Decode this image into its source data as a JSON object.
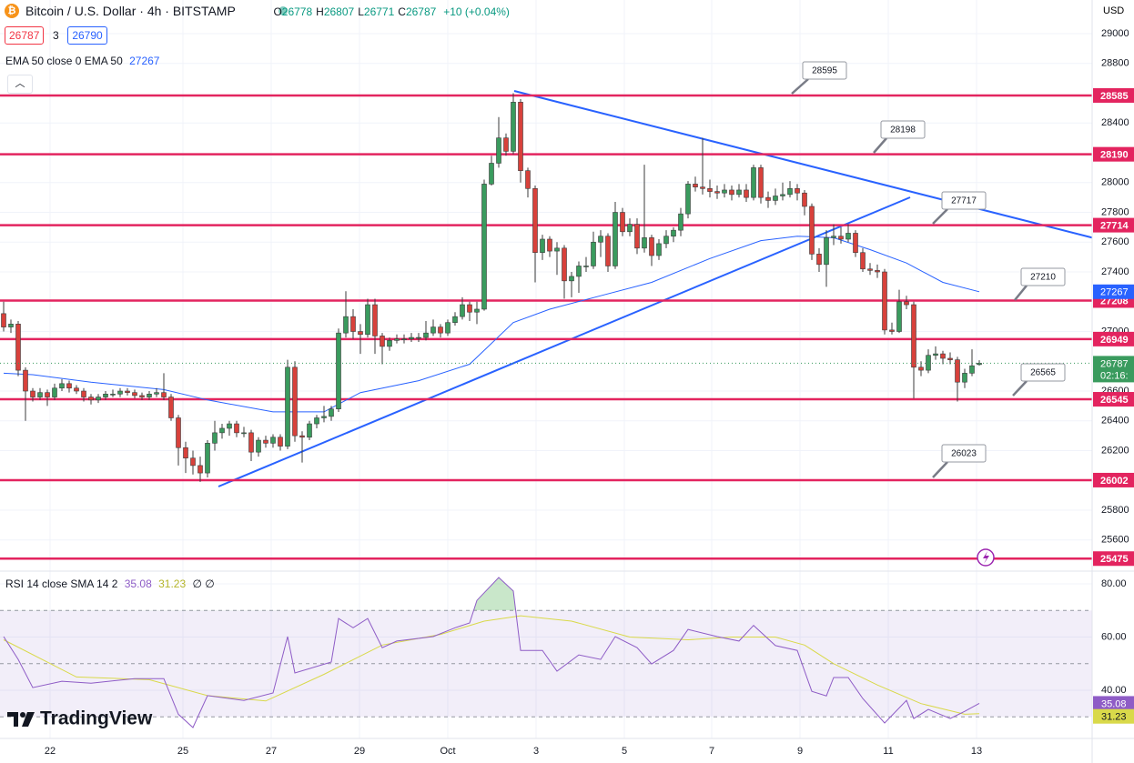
{
  "chart_data": {
    "type": "candlestick",
    "title": "Bitcoin / U.S. Dollar · 4h · BITSTAMP",
    "ohlc_legend": [
      {
        "label": "O",
        "value": 26778
      },
      {
        "label": "H",
        "value": 26807
      },
      {
        "label": "L",
        "value": 26771
      },
      {
        "label": "C",
        "value": 26787
      }
    ],
    "change": "+10 (+0.04%)",
    "bid": 26787,
    "spread": 3,
    "ask": 26790,
    "currency": "USD",
    "ylim": [
      25391,
      29226
    ],
    "yticks": [
      29000,
      28800,
      28400,
      28000,
      27800,
      27600,
      27400,
      27000,
      26600,
      26400,
      26200,
      25800,
      25600
    ],
    "xlim": [
      -0.5,
      149.5
    ],
    "xticks": [
      {
        "value": 6.375,
        "label": "22"
      },
      {
        "value": 24.625,
        "label": "25"
      },
      {
        "value": 36.75,
        "label": "27"
      },
      {
        "value": 48.875,
        "label": "29"
      },
      {
        "value": 61,
        "label": "Oct"
      },
      {
        "value": 73.125,
        "label": "3"
      },
      {
        "value": 85.25,
        "label": "5"
      },
      {
        "value": 97.25,
        "label": "7"
      },
      {
        "value": 109.375,
        "label": "9"
      },
      {
        "value": 121.5,
        "label": "11"
      },
      {
        "value": 133.625,
        "label": "13"
      }
    ],
    "grid": true,
    "up_color": "#3a9b5e",
    "down_color": "#d8413b",
    "wick_color": "#3b3b3b",
    "candles": [
      [
        27120,
        27200,
        27000,
        27030
      ],
      [
        27030,
        27080,
        26990,
        27050
      ],
      [
        27050,
        27070,
        26700,
        26740
      ],
      [
        26740,
        26760,
        26400,
        26600
      ],
      [
        26600,
        26620,
        26530,
        26560
      ],
      [
        26560,
        26620,
        26540,
        26590
      ],
      [
        26590,
        26610,
        26500,
        26560
      ],
      [
        26560,
        26650,
        26540,
        26620
      ],
      [
        26620,
        26680,
        26600,
        26650
      ],
      [
        26650,
        26670,
        26590,
        26620
      ],
      [
        26620,
        26640,
        26580,
        26600
      ],
      [
        26600,
        26620,
        26530,
        26560
      ],
      [
        26560,
        26580,
        26510,
        26540
      ],
      [
        26540,
        26580,
        26520,
        26560
      ],
      [
        26560,
        26600,
        26540,
        26580
      ],
      [
        26580,
        26610,
        26560,
        26580
      ],
      [
        26580,
        26620,
        26560,
        26600
      ],
      [
        26600,
        26620,
        26570,
        26590
      ],
      [
        26590,
        26610,
        26550,
        26570
      ],
      [
        26570,
        26590,
        26540,
        26560
      ],
      [
        26560,
        26600,
        26540,
        26580
      ],
      [
        26580,
        26620,
        26560,
        26590
      ],
      [
        26590,
        26720,
        26540,
        26560
      ],
      [
        26560,
        26580,
        26400,
        26420
      ],
      [
        26420,
        26440,
        26100,
        26220
      ],
      [
        26220,
        26260,
        26050,
        26150
      ],
      [
        26150,
        26200,
        26040,
        26100
      ],
      [
        26100,
        26160,
        25990,
        26050
      ],
      [
        26050,
        26270,
        26020,
        26250
      ],
      [
        26250,
        26400,
        26200,
        26320
      ],
      [
        26320,
        26380,
        26280,
        26350
      ],
      [
        26350,
        26400,
        26300,
        26380
      ],
      [
        26380,
        26400,
        26290,
        26320
      ],
      [
        26320,
        26360,
        26290,
        26320
      ],
      [
        26320,
        26340,
        26130,
        26190
      ],
      [
        26190,
        26290,
        26160,
        26270
      ],
      [
        26270,
        26300,
        26220,
        26250
      ],
      [
        26250,
        26310,
        26220,
        26290
      ],
      [
        26290,
        26310,
        26200,
        26230
      ],
      [
        26230,
        26810,
        26210,
        26760
      ],
      [
        26760,
        26800,
        26260,
        26300
      ],
      [
        26300,
        26330,
        26120,
        26290
      ],
      [
        26290,
        26400,
        26270,
        26380
      ],
      [
        26380,
        26440,
        26350,
        26420
      ],
      [
        26420,
        26500,
        26390,
        26430
      ],
      [
        26430,
        26500,
        26400,
        26480
      ],
      [
        26480,
        27020,
        26460,
        26990
      ],
      [
        26990,
        27270,
        26960,
        27100
      ],
      [
        27100,
        27150,
        26950,
        27000
      ],
      [
        27000,
        27050,
        26850,
        26980
      ],
      [
        26980,
        27220,
        26960,
        27180
      ],
      [
        27180,
        27220,
        26850,
        26970
      ],
      [
        26970,
        26990,
        26780,
        26900
      ],
      [
        26900,
        26960,
        26870,
        26940
      ],
      [
        26940,
        26980,
        26920,
        26950
      ],
      [
        26950,
        26980,
        26920,
        26950
      ],
      [
        26950,
        26990,
        26930,
        26960
      ],
      [
        26960,
        26990,
        26930,
        26960
      ],
      [
        26960,
        27070,
        26940,
        26990
      ],
      [
        26990,
        27080,
        26970,
        27030
      ],
      [
        27030,
        27050,
        26960,
        26990
      ],
      [
        26990,
        27080,
        26970,
        27060
      ],
      [
        27060,
        27130,
        27040,
        27100
      ],
      [
        27100,
        27230,
        27080,
        27180
      ],
      [
        27180,
        27200,
        27070,
        27130
      ],
      [
        27130,
        27200,
        27050,
        27150
      ],
      [
        27150,
        28020,
        27140,
        27990
      ],
      [
        27990,
        28180,
        27980,
        28130
      ],
      [
        28130,
        28440,
        28100,
        28300
      ],
      [
        28300,
        28330,
        28180,
        28210
      ],
      [
        28210,
        28600,
        28190,
        28540
      ],
      [
        28540,
        28560,
        28000,
        28080
      ],
      [
        28080,
        28100,
        27900,
        27960
      ],
      [
        27960,
        27980,
        27330,
        27530
      ],
      [
        27530,
        27650,
        27480,
        27620
      ],
      [
        27620,
        27640,
        27500,
        27540
      ],
      [
        27540,
        27600,
        27380,
        27560
      ],
      [
        27560,
        27580,
        27220,
        27340
      ],
      [
        27340,
        27400,
        27230,
        27370
      ],
      [
        27370,
        27470,
        27260,
        27440
      ],
      [
        27440,
        27500,
        27400,
        27440
      ],
      [
        27440,
        27670,
        27420,
        27600
      ],
      [
        27600,
        27680,
        27500,
        27640
      ],
      [
        27640,
        27660,
        27400,
        27440
      ],
      [
        27440,
        27870,
        27420,
        27800
      ],
      [
        27800,
        27830,
        27640,
        27670
      ],
      [
        27670,
        27760,
        27640,
        27720
      ],
      [
        27720,
        27760,
        27520,
        27560
      ],
      [
        27560,
        28120,
        27530,
        27630
      ],
      [
        27630,
        27650,
        27440,
        27510
      ],
      [
        27510,
        27620,
        27480,
        27590
      ],
      [
        27590,
        27680,
        27560,
        27640
      ],
      [
        27640,
        27700,
        27600,
        27680
      ],
      [
        27680,
        27830,
        27640,
        27790
      ],
      [
        27790,
        28010,
        27760,
        27990
      ],
      [
        27990,
        28040,
        27940,
        27970
      ],
      [
        27970,
        28300,
        27920,
        27960
      ],
      [
        27960,
        28020,
        27900,
        27940
      ],
      [
        27940,
        27980,
        27890,
        27930
      ],
      [
        27930,
        27990,
        27900,
        27950
      ],
      [
        27950,
        27980,
        27880,
        27920
      ],
      [
        27920,
        27990,
        27900,
        27950
      ],
      [
        27950,
        27990,
        27870,
        27900
      ],
      [
        27900,
        28120,
        27880,
        28100
      ],
      [
        28100,
        28120,
        27860,
        27900
      ],
      [
        27900,
        27940,
        27830,
        27880
      ],
      [
        27880,
        27960,
        27850,
        27910
      ],
      [
        27910,
        28000,
        27880,
        27920
      ],
      [
        27920,
        28010,
        27900,
        27960
      ],
      [
        27960,
        27990,
        27880,
        27930
      ],
      [
        27930,
        27950,
        27780,
        27840
      ],
      [
        27840,
        27860,
        27480,
        27520
      ],
      [
        27520,
        27560,
        27400,
        27450
      ],
      [
        27450,
        27680,
        27300,
        27630
      ],
      [
        27630,
        27720,
        27580,
        27640
      ],
      [
        27640,
        27700,
        27590,
        27620
      ],
      [
        27620,
        27720,
        27600,
        27660
      ],
      [
        27660,
        27680,
        27500,
        27530
      ],
      [
        27530,
        27560,
        27400,
        27420
      ],
      [
        27420,
        27460,
        27380,
        27410
      ],
      [
        27410,
        27450,
        27360,
        27400
      ],
      [
        27400,
        27420,
        26980,
        27010
      ],
      [
        27010,
        27060,
        26980,
        27000
      ],
      [
        27000,
        27280,
        26990,
        27200
      ],
      [
        27200,
        27240,
        27150,
        27180
      ],
      [
        27180,
        27200,
        26550,
        26760
      ],
      [
        26760,
        26800,
        26700,
        26740
      ],
      [
        26740,
        26880,
        26720,
        26840
      ],
      [
        26840,
        26900,
        26810,
        26850
      ],
      [
        26850,
        26870,
        26780,
        26820
      ],
      [
        26820,
        26860,
        26780,
        26810
      ],
      [
        26810,
        26830,
        26530,
        26660
      ],
      [
        26660,
        26750,
        26620,
        26720
      ],
      [
        26720,
        26880,
        26700,
        26770
      ],
      [
        26778,
        26807,
        26771,
        26787
      ]
    ],
    "ema": {
      "name": "EMA 50 close 0 EMA 50",
      "last": 27267,
      "color": "#2962ff",
      "x": [
        0,
        4,
        12,
        22,
        28,
        37,
        44,
        49,
        57,
        64,
        70,
        75,
        82,
        89,
        97,
        104,
        109,
        114,
        119,
        124,
        129,
        134
      ],
      "values": [
        26720,
        26710,
        26660,
        26610,
        26540,
        26460,
        26460,
        26590,
        26670,
        26780,
        27060,
        27150,
        27240,
        27330,
        27490,
        27610,
        27640,
        27630,
        27550,
        27460,
        27330,
        27267
      ]
    },
    "levels": [
      28585,
      28190,
      27714,
      27208,
      26949,
      26545,
      26002,
      25475
    ],
    "level_color": "#e3245f",
    "callouts": [
      28595,
      28198,
      27717,
      27210,
      26565,
      26023
    ],
    "current_price": 26787,
    "countdown": "02:16:",
    "rsi": {
      "name": "RSI 14 close SMA 14 2",
      "last": 35.08,
      "sma_last": 31.23,
      "extra": "∅ ∅",
      "color": "#8e5cc6",
      "sma_color": "#d9d94a",
      "ylim": [
        21.9,
        84.8
      ],
      "yticks": [
        {
          "value": 80,
          "label": "80.00"
        },
        {
          "value": 60,
          "label": "60.00"
        },
        {
          "value": 40,
          "label": "40.00"
        }
      ],
      "bands": [
        70,
        50,
        30
      ],
      "x": [
        0,
        2,
        4,
        8,
        12,
        18,
        22,
        24,
        26,
        28,
        33,
        37,
        39,
        40,
        45,
        46,
        48,
        50,
        52,
        54,
        59,
        62,
        64,
        65,
        68,
        70,
        71,
        74,
        76,
        79,
        82,
        84,
        87,
        89,
        92,
        94,
        98,
        101,
        103,
        106,
        109,
        111,
        113,
        114,
        116,
        118,
        121,
        124,
        125,
        127,
        130,
        132,
        134
      ],
      "values": [
        60.2,
        51.6,
        41,
        43.4,
        42.7,
        44.4,
        44.4,
        31,
        26,
        38,
        36.2,
        39,
        60.2,
        46.5,
        50.6,
        67,
        63.5,
        67,
        56,
        58.5,
        60.2,
        63.5,
        65.3,
        73.8,
        82.4,
        77.3,
        55,
        55,
        47.2,
        53.3,
        51.6,
        60.2,
        56,
        49.9,
        55,
        62.9,
        60.2,
        58.5,
        64.4,
        56.8,
        55,
        39.6,
        37.9,
        44.8,
        44.8,
        36.9,
        27.7,
        36.2,
        29.4,
        32.8,
        29.4,
        32.1,
        35.08
      ],
      "sma_x": [
        0,
        10,
        20,
        28,
        36,
        44,
        52,
        60,
        66,
        71,
        78,
        86,
        94,
        100,
        106,
        110,
        114,
        120,
        126,
        132,
        134
      ],
      "sma_values": [
        59,
        45,
        44,
        38,
        36,
        46,
        57,
        61,
        66,
        68,
        66,
        60,
        59,
        60,
        60,
        57,
        50,
        42,
        35,
        31,
        31.23
      ]
    },
    "brand": "TradingView"
  }
}
